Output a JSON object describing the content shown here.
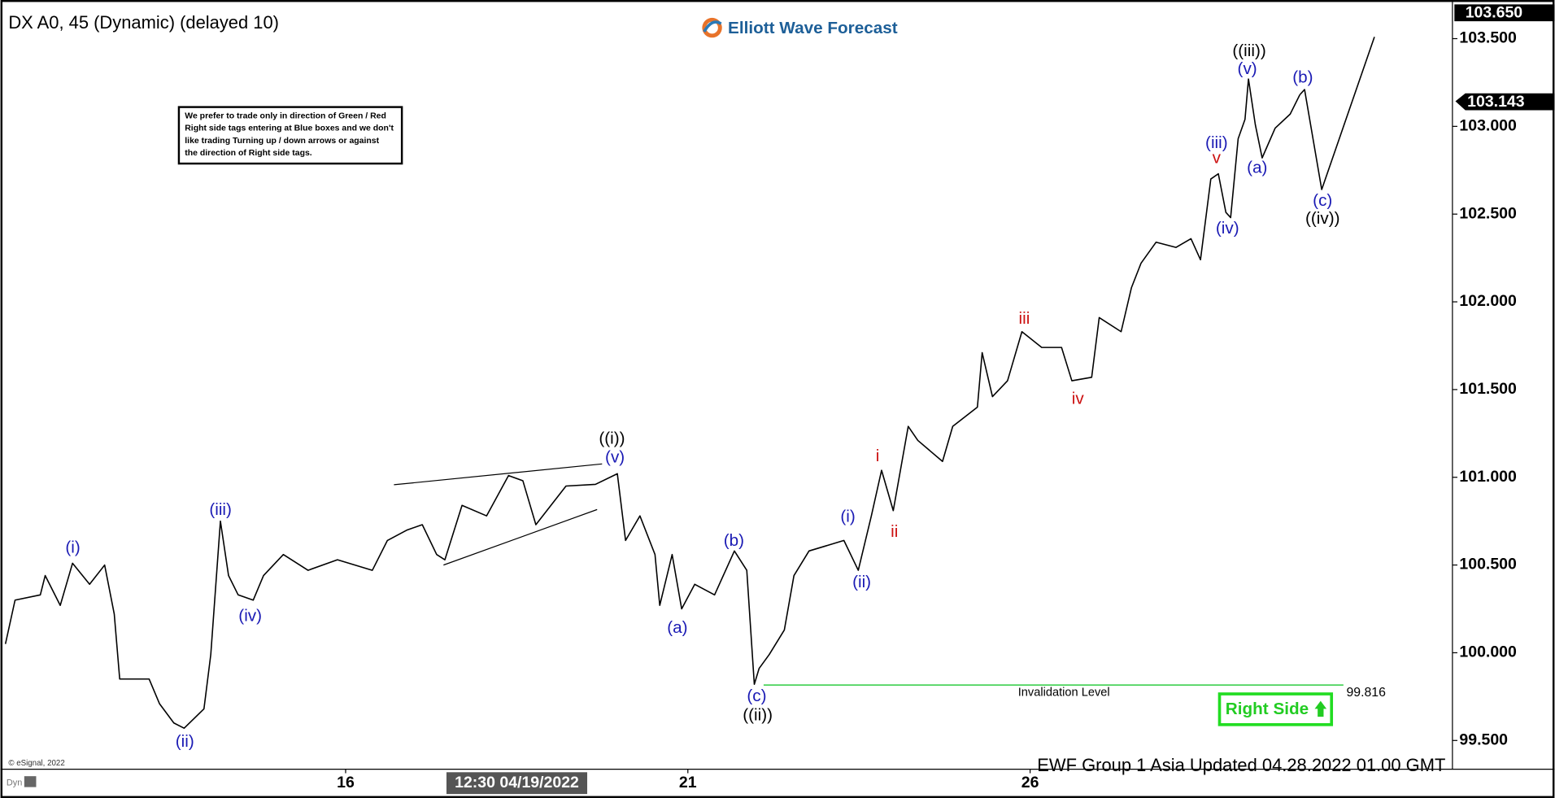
{
  "chart_data": {
    "type": "line",
    "title": "DX A0, 45 (Dynamic) (delayed 10)",
    "brand": "Elliott Wave Forecast",
    "note": [
      "We prefer to trade only in direction of Green / Red",
      "Right side tags entering at Blue boxes and we don't",
      "like trading Turning up / down arrows or against",
      "the direction of Right side tags."
    ],
    "footer": "EWF Group 1 Asia Updated 04.28.2022 01.00 GMT",
    "copyright": "© eSignal, 2022",
    "corner_label": "Dyn",
    "crosshair_label": "12:30 04/19/2022",
    "right_side_label": "Right Side",
    "invalidation": {
      "text": "Invalidation Level",
      "level": {
        "value": 99.816,
        "label": "99.816"
      },
      "color": "#2ecc40"
    },
    "top_price": {
      "value": 103.65,
      "label": "103.650"
    },
    "last_price": {
      "value": 103.143,
      "label": "103.143"
    },
    "xlim": [
      11.03,
      32.17
    ],
    "xticks": [
      16,
      21,
      26
    ],
    "ylim": [
      99.336,
      103.692
    ],
    "yticks": [
      {
        "value": 99.5,
        "label": "99.500"
      },
      {
        "value": 100,
        "label": "100.000"
      },
      {
        "value": 100.5,
        "label": "100.500"
      },
      {
        "value": 101,
        "label": "101.000"
      },
      {
        "value": 101.5,
        "label": "101.500"
      },
      {
        "value": 102,
        "label": "102.000"
      },
      {
        "value": 102.5,
        "label": "102.500"
      },
      {
        "value": 103,
        "label": "103.000"
      },
      {
        "value": 103.5,
        "label": "103.500"
      }
    ],
    "grid": false,
    "series": [
      {
        "color": "#000000",
        "x": [
          11.03,
          11.17,
          11.54,
          11.61,
          11.83,
          12.01,
          12.26,
          12.48,
          12.62,
          12.7,
          13.13,
          13.28,
          13.49,
          13.64,
          13.93,
          14.03,
          14.17,
          14.29,
          14.43,
          14.65,
          14.8,
          15.09,
          15.45,
          15.88,
          16.39,
          16.61,
          16.9,
          17.12,
          17.33,
          17.45,
          17.7,
          18.06,
          18.38,
          18.59,
          18.78,
          19.22,
          19.65,
          19.97,
          20.09,
          20.3,
          20.52,
          20.59,
          20.77,
          20.91,
          21.1,
          21.39,
          21.68,
          21.86,
          21.97,
          22.04,
          22.19,
          22.41,
          22.55,
          22.77,
          23.28,
          23.49,
          23.68,
          23.83,
          24.0,
          24.22,
          24.36,
          24.72,
          24.87,
          25.23,
          25.3,
          25.45,
          25.67,
          25.88,
          26.17,
          26.46,
          26.61,
          26.9,
          27.01,
          27.33,
          27.48,
          27.62,
          27.84,
          28.13,
          28.35,
          28.49,
          28.64,
          28.75,
          28.86,
          28.93,
          29.04,
          29.14,
          29.19,
          29.29,
          29.39,
          29.58,
          29.8,
          29.94
        ],
        "values": [
          100.05,
          100.3,
          100.33,
          100.44,
          100.27,
          100.51,
          100.39,
          100.5,
          100.22,
          99.85,
          99.85,
          99.71,
          99.6,
          99.57,
          99.68,
          99.99,
          100.75,
          100.44,
          100.33,
          100.3,
          100.44,
          100.56,
          100.47,
          100.53,
          100.47,
          100.64,
          100.7,
          100.73,
          100.56,
          100.53,
          100.84,
          100.78,
          101.01,
          100.98,
          100.73,
          100.95,
          100.96,
          101.02,
          100.64,
          100.78,
          100.56,
          100.27,
          100.56,
          100.25,
          100.39,
          100.33,
          100.58,
          100.47,
          99.82,
          99.91,
          99.99,
          100.13,
          100.44,
          100.58,
          100.64,
          100.47,
          100.78,
          101.04,
          100.81,
          101.29,
          101.21,
          101.09,
          101.29,
          101.4,
          101.71,
          101.46,
          101.55,
          101.83,
          101.74,
          101.74,
          101.55,
          101.57,
          101.91,
          101.83,
          102.08,
          102.22,
          102.34,
          102.31,
          102.36,
          102.24,
          102.7,
          102.73,
          102.51,
          102.48,
          102.93,
          103.04,
          103.27,
          103.01,
          102.82,
          102.99,
          103.07,
          103.18
        ]
      },
      {
        "color": "#000000",
        "x": [
          29.94,
          30.01,
          30.26,
          31.03
        ],
        "values": [
          103.18,
          103.21,
          102.64,
          103.51
        ]
      }
    ],
    "wave_labels": [
      {
        "text": "(i)",
        "color": "#1a1ab4"
      },
      {
        "text": "(ii)",
        "color": "#1a1ab4"
      },
      {
        "text": "(iii)",
        "color": "#1a1ab4"
      },
      {
        "text": "(iv)",
        "color": "#1a1ab4"
      },
      {
        "text": "((i))",
        "color": "#000000"
      },
      {
        "text": "(v)",
        "color": "#1a1ab4"
      },
      {
        "text": "(a)",
        "color": "#1a1ab4"
      },
      {
        "text": "(b)",
        "color": "#1a1ab4"
      },
      {
        "text": "(c)",
        "color": "#1a1ab4"
      },
      {
        "text": "((ii))",
        "color": "#000000"
      },
      {
        "text": "(i)",
        "color": "#1a1ab4"
      },
      {
        "text": "(ii)",
        "color": "#1a1ab4"
      },
      {
        "text": "i",
        "color": "#cc1111"
      },
      {
        "text": "ii",
        "color": "#cc1111"
      },
      {
        "text": "iii",
        "color": "#cc1111"
      },
      {
        "text": "iv",
        "color": "#cc1111"
      },
      {
        "text": "(iii)",
        "color": "#1a1ab4"
      },
      {
        "text": "v",
        "color": "#cc1111"
      },
      {
        "text": "(iv)",
        "color": "#1a1ab4"
      },
      {
        "text": "((iii))",
        "color": "#000000"
      },
      {
        "text": "(v)",
        "color": "#1a1ab4"
      },
      {
        "text": "(a)",
        "color": "#1a1ab4"
      },
      {
        "text": "(b)",
        "color": "#1a1ab4"
      },
      {
        "text": "(c)",
        "color": "#1a1ab4"
      },
      {
        "text": "((iv))",
        "color": "#000000"
      }
    ]
  }
}
